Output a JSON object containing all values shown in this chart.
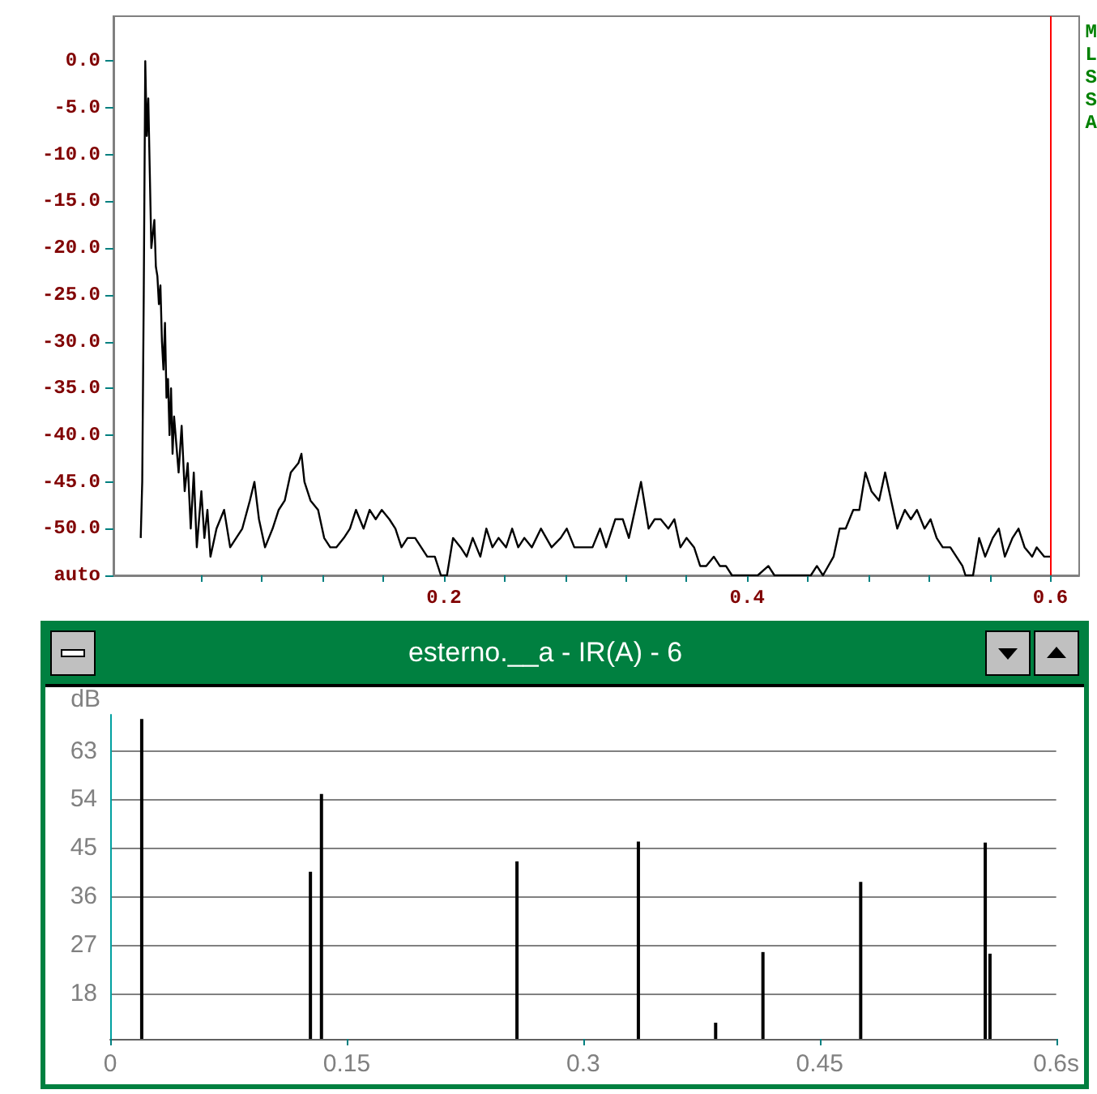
{
  "chart_data": [
    {
      "type": "line",
      "color": "#000000",
      "x": [
        0.0,
        0.001,
        0.002,
        0.003,
        0.004,
        0.005,
        0.006,
        0.007,
        0.009,
        0.01,
        0.011,
        0.012,
        0.013,
        0.014,
        0.015,
        0.016,
        0.017,
        0.018,
        0.019,
        0.02,
        0.021,
        0.022,
        0.025,
        0.027,
        0.029,
        0.031,
        0.033,
        0.035,
        0.037,
        0.04,
        0.042,
        0.044,
        0.046,
        0.05,
        0.055,
        0.059,
        0.063,
        0.067,
        0.072,
        0.075,
        0.078,
        0.082,
        0.087,
        0.091,
        0.095,
        0.099,
        0.104,
        0.106,
        0.108,
        0.112,
        0.117,
        0.121,
        0.125,
        0.129,
        0.134,
        0.138,
        0.142,
        0.147,
        0.151,
        0.155,
        0.159,
        0.164,
        0.168,
        0.172,
        0.176,
        0.181,
        0.185,
        0.189,
        0.194,
        0.198,
        0.202,
        0.206,
        0.211,
        0.215,
        0.219,
        0.224,
        0.228,
        0.232,
        0.236,
        0.241,
        0.245,
        0.249,
        0.253,
        0.258,
        0.264,
        0.271,
        0.277,
        0.281,
        0.286,
        0.292,
        0.298,
        0.303,
        0.307,
        0.313,
        0.318,
        0.322,
        0.326,
        0.33,
        0.335,
        0.339,
        0.343,
        0.348,
        0.352,
        0.356,
        0.36,
        0.365,
        0.369,
        0.373,
        0.378,
        0.382,
        0.386,
        0.39,
        0.399,
        0.407,
        0.414,
        0.418,
        0.427,
        0.435,
        0.442,
        0.446,
        0.45,
        0.457,
        0.461,
        0.465,
        0.47,
        0.474,
        0.478,
        0.482,
        0.487,
        0.491,
        0.495,
        0.499,
        0.504,
        0.508,
        0.512,
        0.517,
        0.521,
        0.525,
        0.529,
        0.534,
        0.538,
        0.542,
        0.544,
        0.549,
        0.553,
        0.557,
        0.562,
        0.566,
        0.57,
        0.575,
        0.579,
        0.583,
        0.588,
        0.591,
        0.596,
        0.6
      ],
      "values": [
        -51,
        -45,
        -25,
        0,
        -8,
        -4,
        -12,
        -20,
        -17,
        -22,
        -23,
        -26,
        -24,
        -30,
        -33,
        -28,
        -36,
        -34,
        -40,
        -35,
        -42,
        -38,
        -44,
        -39,
        -46,
        -43,
        -50,
        -44,
        -52,
        -46,
        -51,
        -48,
        -53,
        -50,
        -48,
        -52,
        -51,
        -50,
        -47,
        -45,
        -49,
        -52,
        -50,
        -48,
        -47,
        -44,
        -43,
        -42,
        -45,
        -47,
        -48,
        -51,
        -52,
        -52,
        -51,
        -50,
        -48,
        -50,
        -48,
        -49,
        -48,
        -49,
        -50,
        -52,
        -51,
        -51,
        -52,
        -53,
        -53,
        -55,
        -55,
        -51,
        -52,
        -53,
        -51,
        -53,
        -50,
        -52,
        -51,
        -52,
        -50,
        -52,
        -51,
        -52,
        -50,
        -52,
        -51,
        -50,
        -52,
        -52,
        -52,
        -50,
        -52,
        -49,
        -49,
        -51,
        -48,
        -45,
        -50,
        -49,
        -49,
        -50,
        -49,
        -52,
        -51,
        -52,
        -54,
        -54,
        -53,
        -54,
        -54,
        -55,
        -55,
        -55,
        -54,
        -55,
        -55,
        -55,
        -55,
        -54,
        -55,
        -53,
        -50,
        -50,
        -48,
        -48,
        -44,
        -46,
        -47,
        -44,
        -47,
        -50,
        -48,
        -49,
        -48,
        -50,
        -49,
        -51,
        -52,
        -52,
        -53,
        -54,
        -55,
        -55,
        -51,
        -53,
        -51,
        -50,
        -53,
        -51,
        -50,
        -52,
        -53,
        -52,
        -53,
        -53
      ],
      "xlim": [
        -0.018,
        0.619
      ],
      "ylim": [
        -55,
        4.8
      ],
      "xticks": [
        {
          "value": 0.04,
          "label": null
        },
        {
          "value": 0.08,
          "label": null
        },
        {
          "value": 0.12,
          "label": null
        },
        {
          "value": 0.16,
          "label": null
        },
        {
          "value": 0.2,
          "label": "0.2"
        },
        {
          "value": 0.24,
          "label": null
        },
        {
          "value": 0.28,
          "label": null
        },
        {
          "value": 0.32,
          "label": null
        },
        {
          "value": 0.36,
          "label": null
        },
        {
          "value": 0.4,
          "label": "0.4"
        },
        {
          "value": 0.44,
          "label": null
        },
        {
          "value": 0.48,
          "label": null
        },
        {
          "value": 0.52,
          "label": null
        },
        {
          "value": 0.56,
          "label": null
        },
        {
          "value": 0.6,
          "label": "0.6"
        }
      ],
      "yticks": [
        {
          "value": 0,
          "label": "0.0"
        },
        {
          "value": -5,
          "label": "-5.0"
        },
        {
          "value": -10,
          "label": "-10.0"
        },
        {
          "value": -15,
          "label": "-15.0"
        },
        {
          "value": -20,
          "label": "-20.0"
        },
        {
          "value": -25,
          "label": "-25.0"
        },
        {
          "value": -30,
          "label": "-30.0"
        },
        {
          "value": -35,
          "label": "-35.0"
        },
        {
          "value": -40,
          "label": "-40.0"
        },
        {
          "value": -45,
          "label": "-45.0"
        },
        {
          "value": -50,
          "label": "-50.0"
        },
        {
          "value": -55,
          "label": "auto"
        }
      ],
      "ref_lines": [
        {
          "axis": "x",
          "value": 0.6,
          "color": "#ff0000"
        }
      ],
      "annotations": [
        "M",
        "L",
        "S",
        "S",
        "A"
      ]
    },
    {
      "type": "bar",
      "title": "esterno.__a - IR(A) - 6",
      "ylabel": "dB",
      "color": "#000000",
      "x": [
        0.02,
        0.127,
        0.134,
        0.258,
        0.335,
        0.384,
        0.414,
        0.476,
        0.555,
        0.558
      ],
      "values": [
        68.9,
        40.6,
        55.0,
        42.5,
        46.2,
        12.6,
        25.7,
        38.7,
        46.0,
        25.4
      ],
      "xlim": [
        0,
        0.6
      ],
      "ylim": [
        9.6,
        69.7
      ],
      "xticks": [
        0,
        0.15,
        0.3,
        0.45,
        {
          "value": 0.6,
          "label": "0.6s"
        }
      ],
      "yticks": [
        18,
        27,
        36,
        45,
        54,
        63
      ],
      "grid": "y"
    }
  ]
}
